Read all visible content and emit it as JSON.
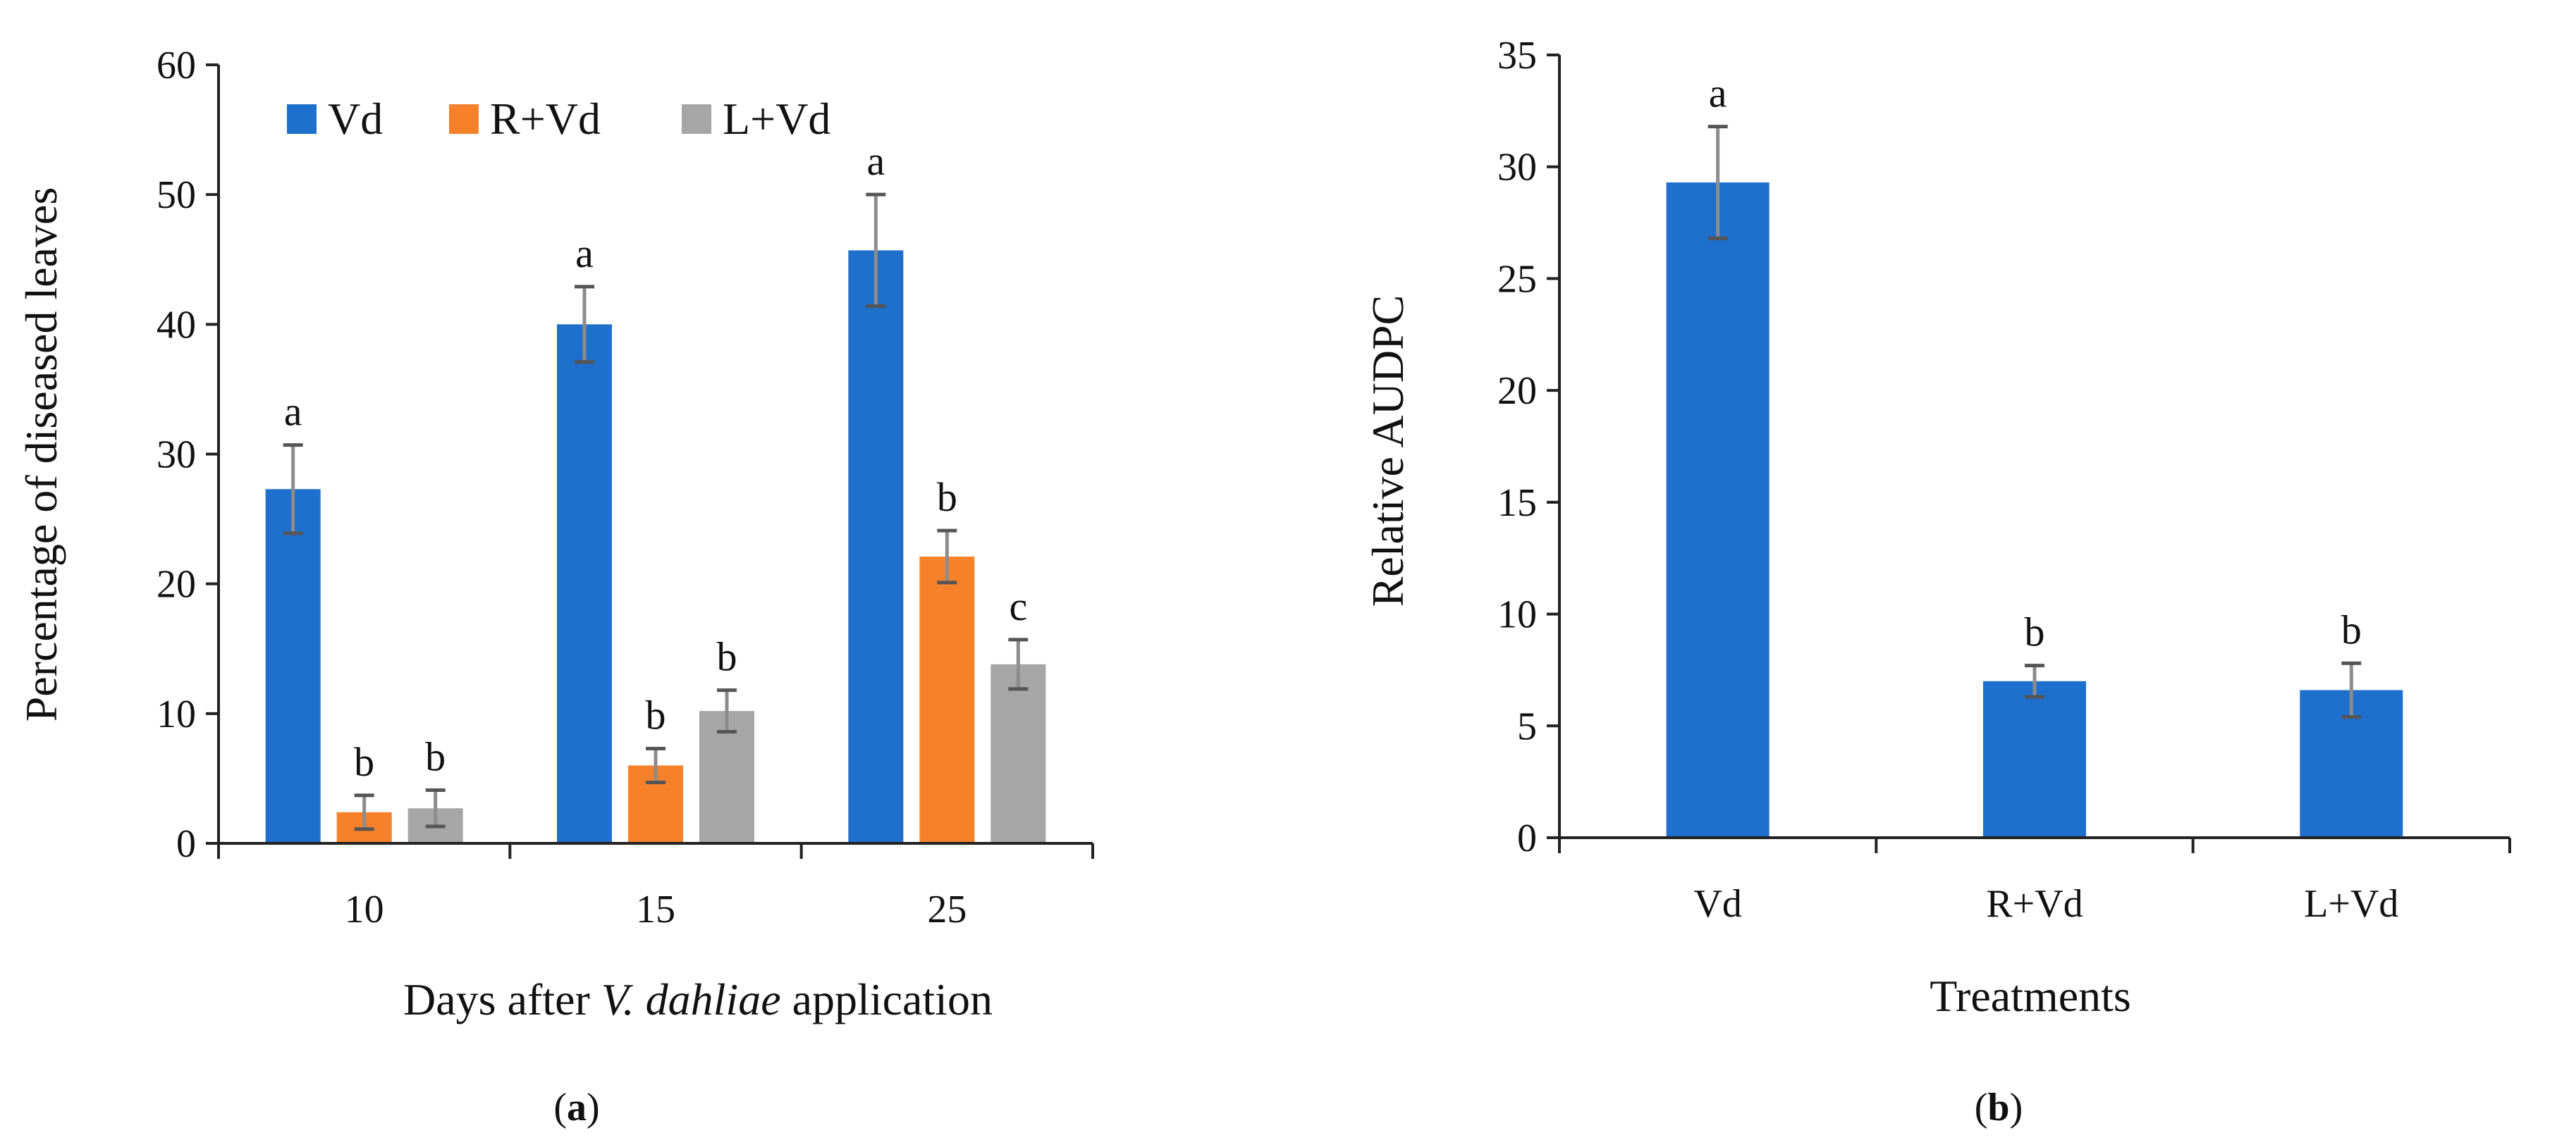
{
  "chart_data": [
    {
      "type": "bar",
      "panel_label": {
        "open": "(",
        "letter": "a",
        "close": ")"
      },
      "categories": [
        "10",
        "15",
        "25"
      ],
      "series": [
        {
          "name": "Vd",
          "color": "#1f6fcc",
          "values": [
            27.3,
            40.0,
            45.7
          ],
          "errors": [
            3.4,
            2.9,
            4.3
          ],
          "letters": [
            "a",
            "a",
            "a"
          ]
        },
        {
          "name": "R+Vd",
          "color": "#f5822a",
          "values": [
            2.4,
            6.0,
            22.1
          ],
          "errors": [
            1.3,
            1.3,
            2.0
          ],
          "letters": [
            "b",
            "b",
            "b"
          ]
        },
        {
          "name": "L+Vd",
          "color": "#a6a6a6",
          "values": [
            2.7,
            10.2,
            13.8
          ],
          "errors": [
            1.4,
            1.6,
            1.9
          ],
          "letters": [
            "b",
            "b",
            "c"
          ]
        }
      ],
      "xlabel": {
        "prefix": "Days after ",
        "italic": "V. dahliae",
        "suffix": " application"
      },
      "ylabel": "Percentage of diseased leaves",
      "ylim": [
        0,
        60
      ],
      "yticks": [
        0,
        10,
        20,
        30,
        40,
        50,
        60
      ],
      "legend_position": "top-left"
    },
    {
      "type": "bar",
      "panel_label": {
        "open": "(",
        "letter": "b",
        "close": ")"
      },
      "categories": [
        "Vd",
        "R+Vd",
        "L+Vd"
      ],
      "series": [
        {
          "name": "Relative AUDPC",
          "color": "#1f6fcc",
          "values": [
            29.3,
            7.0,
            6.6
          ],
          "errors": [
            2.5,
            0.7,
            1.2
          ],
          "letters": [
            "a",
            "b",
            "b"
          ]
        }
      ],
      "xlabel": "Treatments",
      "ylabel": "Relative AUDPC",
      "ylim": [
        0,
        35
      ],
      "yticks": [
        0,
        5,
        10,
        15,
        20,
        25,
        30,
        35
      ]
    }
  ]
}
